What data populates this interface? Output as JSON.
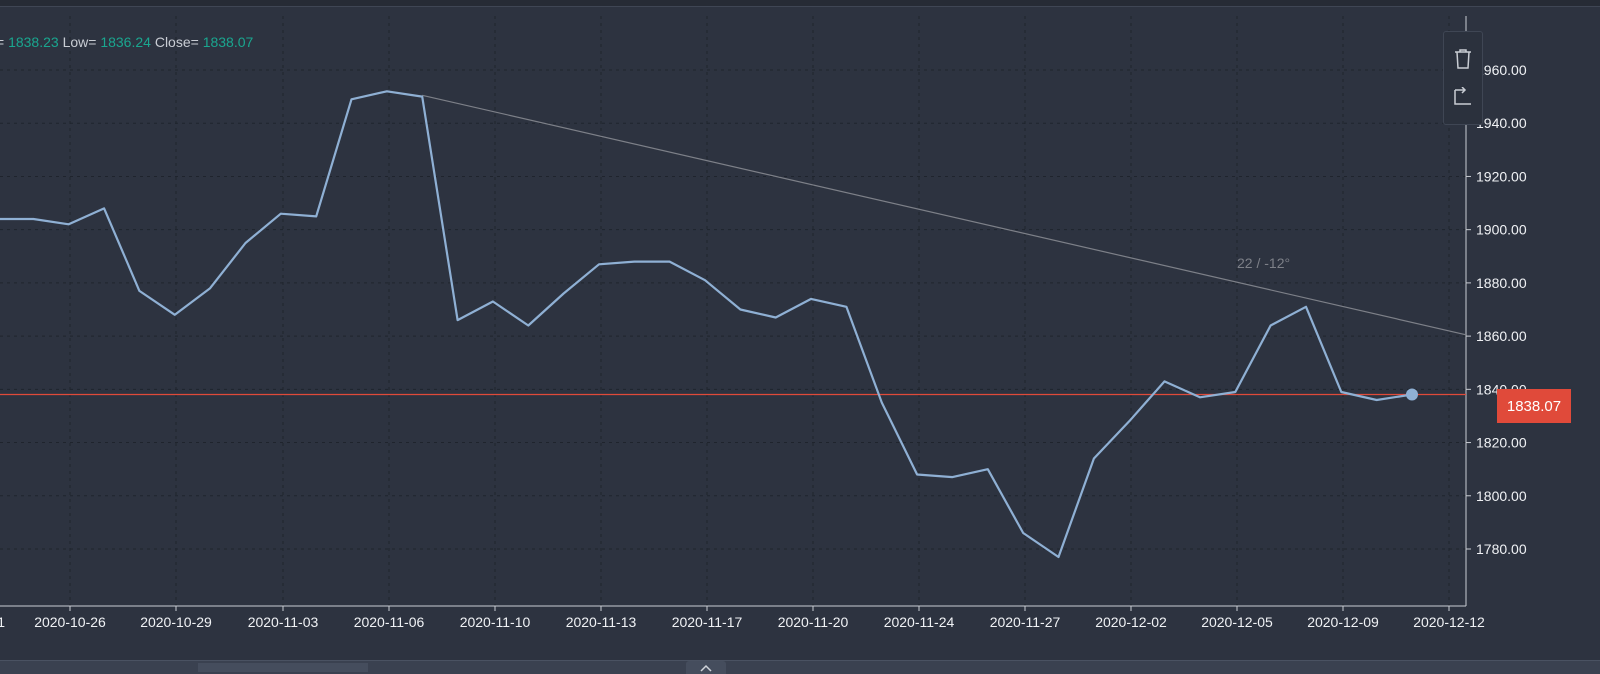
{
  "legend": {
    "high_prefix": "= ",
    "high_value": "1838.23",
    "low_label": " Low= ",
    "low_value": "1836.24",
    "close_label": " Close= ",
    "close_value": "1838.07"
  },
  "toolbar": {
    "delete_icon": "trash-icon",
    "undo_icon": "undo-icon"
  },
  "price_badge": "1838.07",
  "trendline_label": "22 / -12°",
  "colors": {
    "background": "#2d3340",
    "line": "#8fb0d4",
    "trendline": "#7d8088",
    "price_line": "#e04a3a",
    "legend_value": "#1aa68f",
    "axis_text": "#f0f2f5"
  },
  "chart_data": {
    "type": "line",
    "x_labels": [
      "2020-10-26",
      "2020-10-29",
      "2020-11-03",
      "2020-11-06",
      "2020-11-10",
      "2020-11-13",
      "2020-11-17",
      "2020-11-20",
      "2020-11-24",
      "2020-11-27",
      "2020-12-02",
      "2020-12-05",
      "2020-12-09",
      "2020-12-12"
    ],
    "x_label_partial_left": "1",
    "y_ticks": [
      1780,
      1800,
      1820,
      1840,
      1860,
      1880,
      1900,
      1920,
      1940,
      1960
    ],
    "y_tick_labels": [
      "1780.00",
      "1800.00",
      "1820.00",
      "1840.00",
      "1860.00",
      "1880.00",
      "1900.00",
      "1920.00",
      "1940.00",
      "1960.00"
    ],
    "ylim": [
      1763,
      1973
    ],
    "series": [
      {
        "values": [
          1904,
          1904,
          1902,
          1908,
          1877,
          1868,
          1878,
          1895,
          1906,
          1905,
          1949,
          1952,
          1950,
          1866,
          1873,
          1864,
          1876,
          1887,
          1888,
          1888,
          1881,
          1870,
          1867,
          1874,
          1871,
          1835,
          1808,
          1807,
          1810,
          1786,
          1777,
          1814,
          1828,
          1843,
          1837,
          1839,
          1864,
          1871,
          1839,
          1836,
          1838.07
        ]
      }
    ],
    "last_close": 1838.07,
    "trendline": {
      "from_index": 12,
      "from_value": 1950.5,
      "to_value": 1860.5
    }
  }
}
